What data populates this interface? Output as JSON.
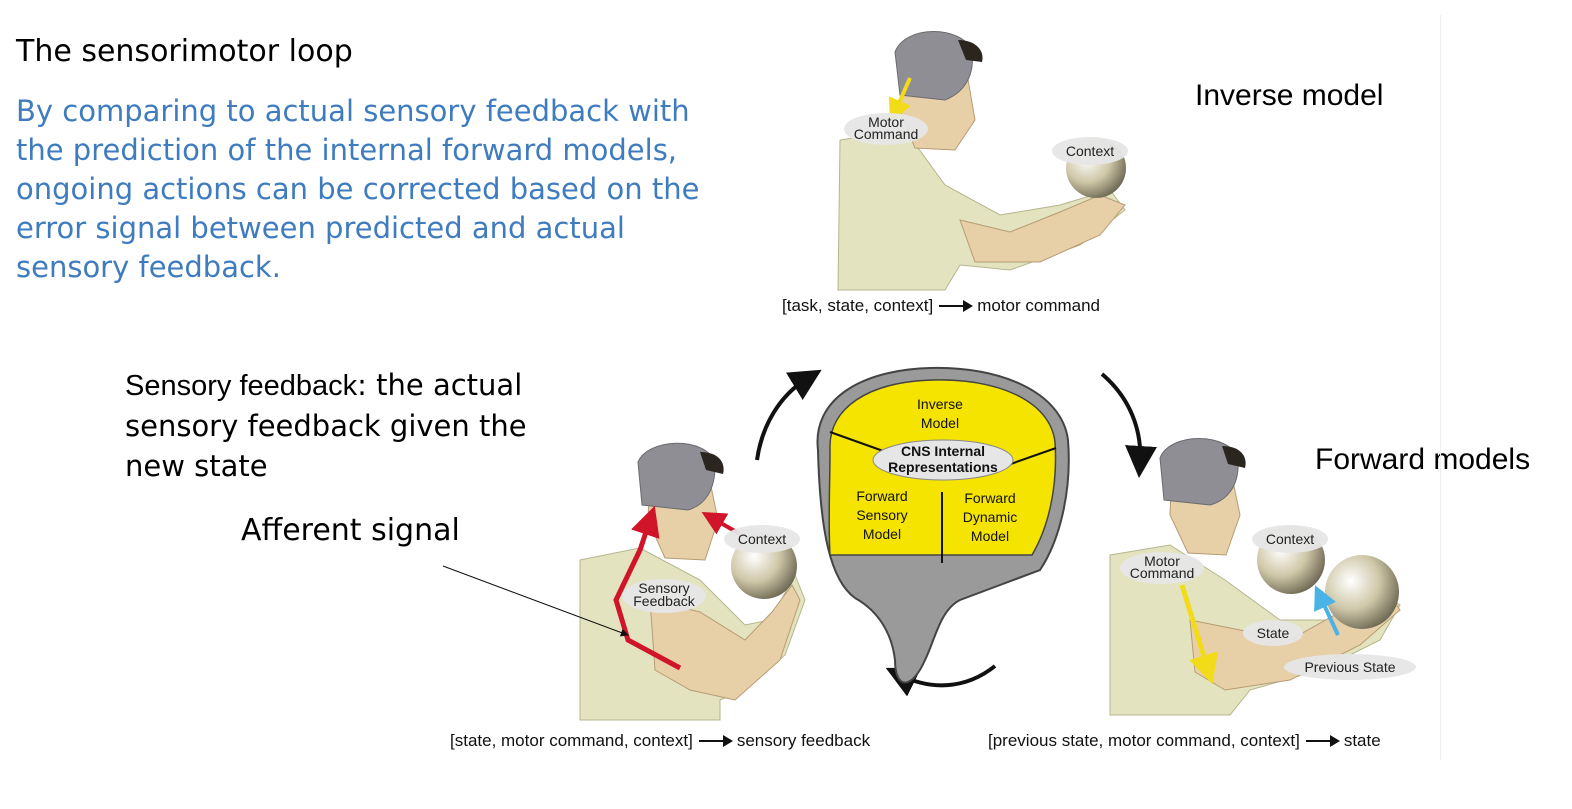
{
  "title": "The sensorimotor loop",
  "description": "By comparing to actual sensory feedback with the prediction of the internal forward models, ongoing actions can be corrected based on the error signal between predicted and actual sensory feedback.",
  "sensory_feedback": {
    "term": "Sensory feedback",
    "definition": ": the actual sensory feedback given the new state"
  },
  "afferent_label": "Afferent signal",
  "inverse_label": "Inverse model",
  "forward_label": "Forward models",
  "figure_top": {
    "labels": {
      "motor_command_1": "Motor",
      "motor_command_2": "Command",
      "context": "Context"
    },
    "formula_left": "[task, state, context]",
    "formula_right": "motor command"
  },
  "figure_left": {
    "labels": {
      "context": "Context",
      "sensory_1": "Sensory",
      "sensory_2": "Feedback"
    },
    "formula_left": "[state, motor command, context]",
    "formula_right": "sensory feedback"
  },
  "figure_right": {
    "labels": {
      "motor_command_1": "Motor",
      "motor_command_2": "Command",
      "context": "Context",
      "state": "State",
      "previous_state": "Previous State"
    },
    "formula_left": "[previous state, motor command, context]",
    "formula_right": "state"
  },
  "brain": {
    "inverse_1": "Inverse",
    "inverse_2": "Model",
    "cns_1": "CNS Internal",
    "cns_2": "Representations",
    "fsm_1": "Forward",
    "fsm_2": "Sensory",
    "fsm_3": "Model",
    "fdm_1": "Forward",
    "fdm_2": "Dynamic",
    "fdm_3": "Model"
  },
  "colors": {
    "blue_text": "#3f7cbf",
    "brain_yellow": "#f5e400",
    "brain_gray": "#9a9a9a",
    "skin": "#e7cfa8",
    "shirt": "#e3e3bf",
    "head_gray": "#8e8e94",
    "red_signal": "#d0142a",
    "yellow_signal": "#f2dc1a",
    "cyan_signal": "#4ab3e6"
  }
}
